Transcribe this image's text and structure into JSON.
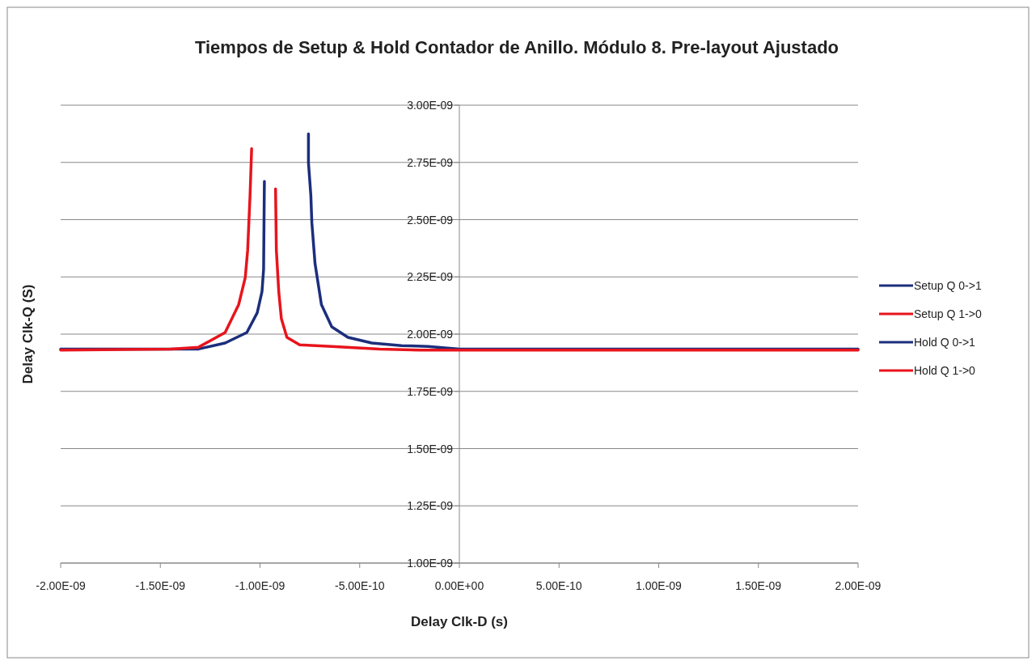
{
  "chart_data": {
    "type": "line",
    "title": "Tiempos de Setup & Hold Contador de Anillo. Módulo 8. Pre-layout Ajustado",
    "xlabel": "Delay Clk-D (s)",
    "ylabel": "Delay Clk-Q (S)",
    "xlim": [
      -2e-09,
      2e-09
    ],
    "ylim": [
      1e-09,
      3e-09
    ],
    "xticks": [
      {
        "value": -2e-09,
        "label": "-2.00E-09"
      },
      {
        "value": -1.5e-09,
        "label": "-1.50E-09"
      },
      {
        "value": -1e-09,
        "label": "-1.00E-09"
      },
      {
        "value": -5e-10,
        "label": "-5.00E-10"
      },
      {
        "value": 0,
        "label": "0.00E+00"
      },
      {
        "value": 5e-10,
        "label": "5.00E-10"
      },
      {
        "value": 1e-09,
        "label": "1.00E-09"
      },
      {
        "value": 1.5e-09,
        "label": "1.50E-09"
      },
      {
        "value": 2e-09,
        "label": "2.00E-09"
      }
    ],
    "yticks": [
      {
        "value": 1e-09,
        "label": "1.00E-09"
      },
      {
        "value": 1.25e-09,
        "label": "1.25E-09"
      },
      {
        "value": 1.5e-09,
        "label": "1.50E-09"
      },
      {
        "value": 1.75e-09,
        "label": "1.75E-09"
      },
      {
        "value": 2e-09,
        "label": "2.00E-09"
      },
      {
        "value": 2.25e-09,
        "label": "2.25E-09"
      },
      {
        "value": 2.5e-09,
        "label": "2.50E-09"
      },
      {
        "value": 2.75e-09,
        "label": "2.75E-09"
      },
      {
        "value": 3e-09,
        "label": "3.00E-09"
      }
    ],
    "grid": "y",
    "legend": "right",
    "marker": "none",
    "line_style": "solid",
    "series": [
      {
        "name": "Setup Q 0->1",
        "color": "#1c2e7c",
        "x": [
          -2e-09,
          -1.308e-09,
          -1.175e-09,
          -1.066e-09,
          -1.014e-09,
          -9.9e-10,
          -9.82e-10,
          -9.8e-10,
          -9.78e-10
        ],
        "values": [
          1.935e-09,
          1.935e-09,
          1.961e-09,
          2.007e-09,
          2.093e-09,
          2.186e-09,
          2.283e-09,
          2.487e-09,
          2.667e-09
        ]
      },
      {
        "name": "Setup Q 1->0",
        "color": "#e8141c",
        "x": [
          -2e-09,
          -1.445e-09,
          -1.308e-09,
          -1.175e-09,
          -1.107e-09,
          -1.074e-09,
          -1.062e-09,
          -1.05e-09,
          -1.042e-09
        ],
        "values": [
          1.93e-09,
          1.935e-09,
          1.943e-09,
          2.007e-09,
          2.129e-09,
          2.247e-09,
          2.366e-09,
          2.606e-09,
          2.81e-09
        ]
      },
      {
        "name": "Hold Q 0->1",
        "color": "#1c2e7c",
        "x": [
          -7.57e-10,
          -7.57e-10,
          -7.45e-10,
          -7.4e-10,
          -7.24e-10,
          -6.92e-10,
          -6.4e-10,
          -5.59e-10,
          -4.39e-10,
          -2.9e-10,
          -1.57e-10,
          0,
          2e-09
        ],
        "values": [
          2.875e-09,
          2.749e-09,
          2.606e-09,
          2.487e-09,
          2.308e-09,
          2.129e-09,
          2.032e-09,
          1.986e-09,
          1.961e-09,
          1.95e-09,
          1.946e-09,
          1.935e-09,
          1.935e-09
        ]
      },
      {
        "name": "Hold Q 1->0",
        "color": "#e8141c",
        "x": [
          -9.22e-10,
          -9.18e-10,
          -9.06e-10,
          -8.93e-10,
          -8.65e-10,
          -8.01e-10,
          -6.4e-10,
          -4e-10,
          -2e-10,
          2e-09
        ],
        "values": [
          2.634e-09,
          2.366e-09,
          2.186e-09,
          2.068e-09,
          1.986e-09,
          1.953e-09,
          1.946e-09,
          1.935e-09,
          1.93e-09,
          1.93e-09
        ]
      }
    ]
  }
}
